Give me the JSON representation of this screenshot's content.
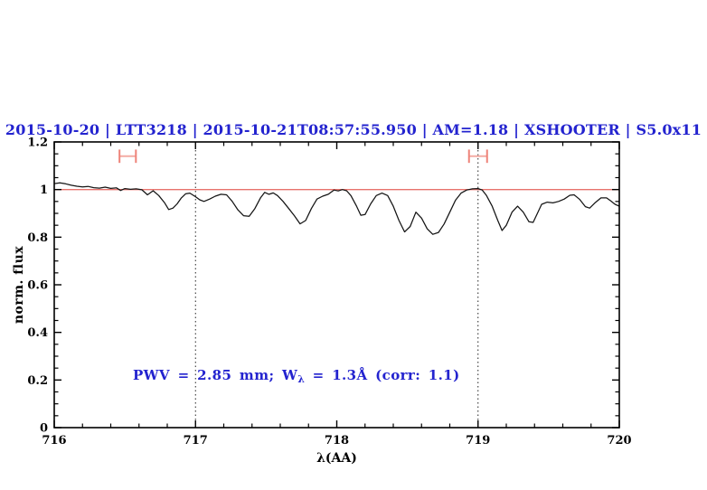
{
  "colors": {
    "title_text": "#2323cf",
    "annotation_text": "#2323cf",
    "reference_line": "#e8736c",
    "marker_cap": "#ee8379",
    "marker_bar": "#f4aba4",
    "spectrum": "#141414",
    "frame": "#000000",
    "dotted_line": "#222222"
  },
  "chart_data": {
    "type": "line",
    "title": "2015-10-20 | LTT3218 | 2015-10-21T08:57:55.950 | AM=1.18 | XSHOOTER | S5.0x11",
    "xlabel": "λ(AA)",
    "ylabel": "norm. flux",
    "xlim": [
      716,
      720
    ],
    "ylim": [
      0,
      1.2
    ],
    "x_major_ticks": [
      716,
      717,
      718,
      719,
      720
    ],
    "x_tick_labels": [
      "716",
      "717",
      "718",
      "719",
      "720"
    ],
    "x_minor_step": 0.2,
    "y_major_ticks": [
      0,
      0.2,
      0.4,
      0.6,
      0.8,
      1,
      1.2
    ],
    "y_tick_labels": [
      "0",
      "0.2",
      "0.4",
      "0.6",
      "0.8",
      "1",
      "1.2"
    ],
    "y_minor_step": 0.05,
    "grid": "off",
    "legend": "none",
    "reference_line_y": 1.0,
    "vertical_dotted_lines_x": [
      717,
      719
    ],
    "interval_markers": [
      {
        "x_center": 716.52,
        "half_width": 0.058,
        "y": 1.14,
        "cap_half_height": 0.028
      },
      {
        "x_center": 719.0,
        "half_width": 0.064,
        "y": 1.14,
        "cap_half_height": 0.028
      }
    ],
    "annotation": {
      "prefix": "PWV = 2.85 mm; W",
      "subscript": "λ",
      "suffix": " = 1.3Å (corr: 1.1)"
    },
    "series": [
      {
        "name": "normalized-spectrum",
        "points": [
          [
            716.0,
            1.025
          ],
          [
            716.04,
            1.028
          ],
          [
            716.08,
            1.024
          ],
          [
            716.12,
            1.018
          ],
          [
            716.16,
            1.014
          ],
          [
            716.2,
            1.011
          ],
          [
            716.24,
            1.013
          ],
          [
            716.28,
            1.008
          ],
          [
            716.32,
            1.006
          ],
          [
            716.36,
            1.01
          ],
          [
            716.4,
            1.005
          ],
          [
            716.44,
            1.007
          ],
          [
            716.47,
            0.996
          ],
          [
            716.5,
            1.004
          ],
          [
            716.54,
            1.001
          ],
          [
            716.58,
            1.003
          ],
          [
            716.62,
            0.999
          ],
          [
            716.66,
            0.978
          ],
          [
            716.7,
            0.995
          ],
          [
            716.74,
            0.975
          ],
          [
            716.78,
            0.945
          ],
          [
            716.81,
            0.916
          ],
          [
            716.84,
            0.922
          ],
          [
            716.87,
            0.94
          ],
          [
            716.9,
            0.965
          ],
          [
            716.93,
            0.982
          ],
          [
            716.96,
            0.985
          ],
          [
            717.0,
            0.97
          ],
          [
            717.03,
            0.957
          ],
          [
            717.06,
            0.95
          ],
          [
            717.1,
            0.96
          ],
          [
            717.14,
            0.972
          ],
          [
            717.18,
            0.98
          ],
          [
            717.22,
            0.978
          ],
          [
            717.26,
            0.95
          ],
          [
            717.3,
            0.915
          ],
          [
            717.34,
            0.89
          ],
          [
            717.38,
            0.888
          ],
          [
            717.42,
            0.92
          ],
          [
            717.46,
            0.965
          ],
          [
            717.49,
            0.988
          ],
          [
            717.52,
            0.98
          ],
          [
            717.55,
            0.986
          ],
          [
            717.58,
            0.975
          ],
          [
            717.62,
            0.95
          ],
          [
            717.66,
            0.92
          ],
          [
            717.7,
            0.89
          ],
          [
            717.74,
            0.856
          ],
          [
            717.78,
            0.87
          ],
          [
            717.82,
            0.92
          ],
          [
            717.86,
            0.96
          ],
          [
            717.9,
            0.972
          ],
          [
            717.94,
            0.98
          ],
          [
            717.98,
            0.998
          ],
          [
            718.01,
            0.994
          ],
          [
            718.04,
            1.0
          ],
          [
            718.07,
            0.995
          ],
          [
            718.1,
            0.975
          ],
          [
            718.14,
            0.93
          ],
          [
            718.17,
            0.892
          ],
          [
            718.2,
            0.895
          ],
          [
            718.24,
            0.94
          ],
          [
            718.28,
            0.975
          ],
          [
            718.32,
            0.985
          ],
          [
            718.36,
            0.975
          ],
          [
            718.4,
            0.93
          ],
          [
            718.44,
            0.87
          ],
          [
            718.48,
            0.822
          ],
          [
            718.52,
            0.845
          ],
          [
            718.56,
            0.905
          ],
          [
            718.6,
            0.88
          ],
          [
            718.64,
            0.835
          ],
          [
            718.68,
            0.812
          ],
          [
            718.72,
            0.82
          ],
          [
            718.76,
            0.855
          ],
          [
            718.8,
            0.905
          ],
          [
            718.84,
            0.955
          ],
          [
            718.88,
            0.985
          ],
          [
            718.92,
            0.998
          ],
          [
            718.96,
            1.003
          ],
          [
            719.0,
            1.004
          ],
          [
            719.03,
            0.998
          ],
          [
            719.06,
            0.975
          ],
          [
            719.1,
            0.93
          ],
          [
            719.14,
            0.87
          ],
          [
            719.17,
            0.828
          ],
          [
            719.2,
            0.85
          ],
          [
            719.24,
            0.905
          ],
          [
            719.28,
            0.93
          ],
          [
            719.32,
            0.905
          ],
          [
            719.36,
            0.865
          ],
          [
            719.39,
            0.862
          ],
          [
            719.42,
            0.9
          ],
          [
            719.45,
            0.938
          ],
          [
            719.49,
            0.947
          ],
          [
            719.53,
            0.944
          ],
          [
            719.57,
            0.95
          ],
          [
            719.61,
            0.96
          ],
          [
            719.65,
            0.976
          ],
          [
            719.68,
            0.978
          ],
          [
            719.72,
            0.958
          ],
          [
            719.76,
            0.928
          ],
          [
            719.79,
            0.922
          ],
          [
            719.83,
            0.945
          ],
          [
            719.87,
            0.965
          ],
          [
            719.91,
            0.965
          ],
          [
            719.94,
            0.952
          ],
          [
            719.97,
            0.938
          ],
          [
            720.0,
            0.93
          ]
        ]
      }
    ]
  }
}
